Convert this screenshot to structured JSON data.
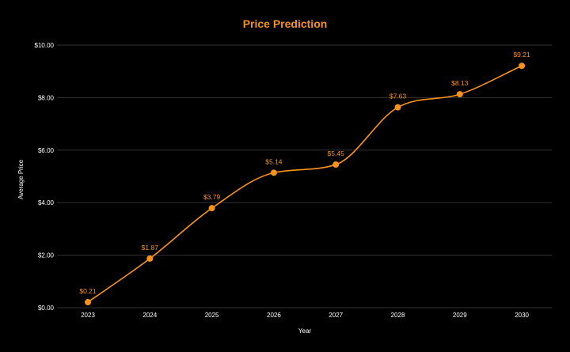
{
  "chart_data": {
    "type": "line",
    "title": "Price Prediction",
    "xlabel": "Year",
    "ylabel": "Average Price",
    "categories": [
      "2023",
      "2024",
      "2025",
      "2026",
      "2027",
      "2028",
      "2029",
      "2030"
    ],
    "series": [
      {
        "values": [
          0.21,
          1.87,
          3.79,
          5.14,
          5.45,
          7.63,
          8.13,
          9.21
        ],
        "data_labels": [
          "$0.21",
          "$1.87",
          "$3.79",
          "$5.14",
          "$5.45",
          "$7.63",
          "$8.13",
          "$9.21"
        ]
      }
    ],
    "ylim": [
      0,
      10
    ],
    "yticks": [
      0,
      2,
      4,
      6,
      8,
      10
    ],
    "ytick_labels": [
      "$0.00",
      "$2.00",
      "$4.00",
      "$6.00",
      "$8.00",
      "$10.00"
    ],
    "grid": true,
    "legend": "none",
    "smooth": true
  },
  "colors": {
    "background": "#000000",
    "accent": "#f7931a",
    "grid": "#333333",
    "text": "#ffffff"
  }
}
